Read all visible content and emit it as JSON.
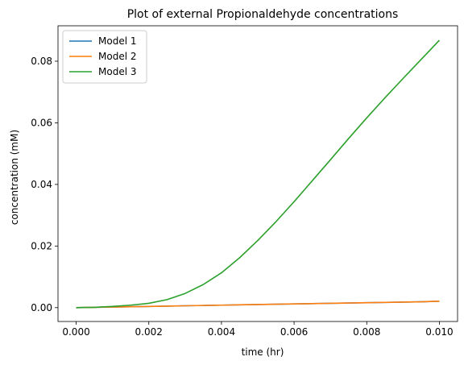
{
  "chart_data": {
    "type": "line",
    "title": "Plot of external Propionaldehyde concentrations",
    "xlabel": "time (hr)",
    "ylabel": "concentration (mM)",
    "xlim": [
      -0.0005,
      0.0105
    ],
    "ylim": [
      -0.0045,
      0.0915
    ],
    "xticks": [
      0.0,
      0.002,
      0.004,
      0.006,
      0.008,
      0.01
    ],
    "xtick_labels": [
      "0.000",
      "0.002",
      "0.004",
      "0.006",
      "0.008",
      "0.010"
    ],
    "yticks": [
      0.0,
      0.02,
      0.04,
      0.06,
      0.08
    ],
    "ytick_labels": [
      "0.00",
      "0.02",
      "0.04",
      "0.06",
      "0.08"
    ],
    "grid": false,
    "legend": "top-left",
    "x": [
      0.0,
      0.0005,
      0.001,
      0.0015,
      0.002,
      0.0025,
      0.003,
      0.0035,
      0.004,
      0.0045,
      0.005,
      0.0055,
      0.006,
      0.0065,
      0.007,
      0.0075,
      0.008,
      0.0085,
      0.009,
      0.0095,
      0.01
    ],
    "series": [
      {
        "name": "Model 1",
        "color": "#1f77b4",
        "values": [
          0.0,
          0.0001,
          0.0002,
          0.0003,
          0.0004,
          0.0005,
          0.0006,
          0.0007,
          0.0008,
          0.0009,
          0.001,
          0.0011,
          0.0012,
          0.0013,
          0.0014,
          0.0015,
          0.0016,
          0.0017,
          0.0018,
          0.0019,
          0.0021
        ]
      },
      {
        "name": "Model 2",
        "color": "#ff7f0e",
        "values": [
          0.0,
          0.0001,
          0.0002,
          0.0003,
          0.0004,
          0.0005,
          0.0006,
          0.0007,
          0.0008,
          0.0009,
          0.001,
          0.0011,
          0.0012,
          0.0013,
          0.0014,
          0.0015,
          0.0016,
          0.0017,
          0.0018,
          0.0019,
          0.0021
        ]
      },
      {
        "name": "Model 3",
        "color": "#2ca02c",
        "values": [
          0.0,
          0.0001,
          0.0004,
          0.0008,
          0.0014,
          0.0026,
          0.0046,
          0.0075,
          0.0113,
          0.0162,
          0.0218,
          0.0279,
          0.0344,
          0.0412,
          0.048,
          0.0549,
          0.0616,
          0.0681,
          0.0744,
          0.0806,
          0.0868
        ]
      }
    ]
  }
}
